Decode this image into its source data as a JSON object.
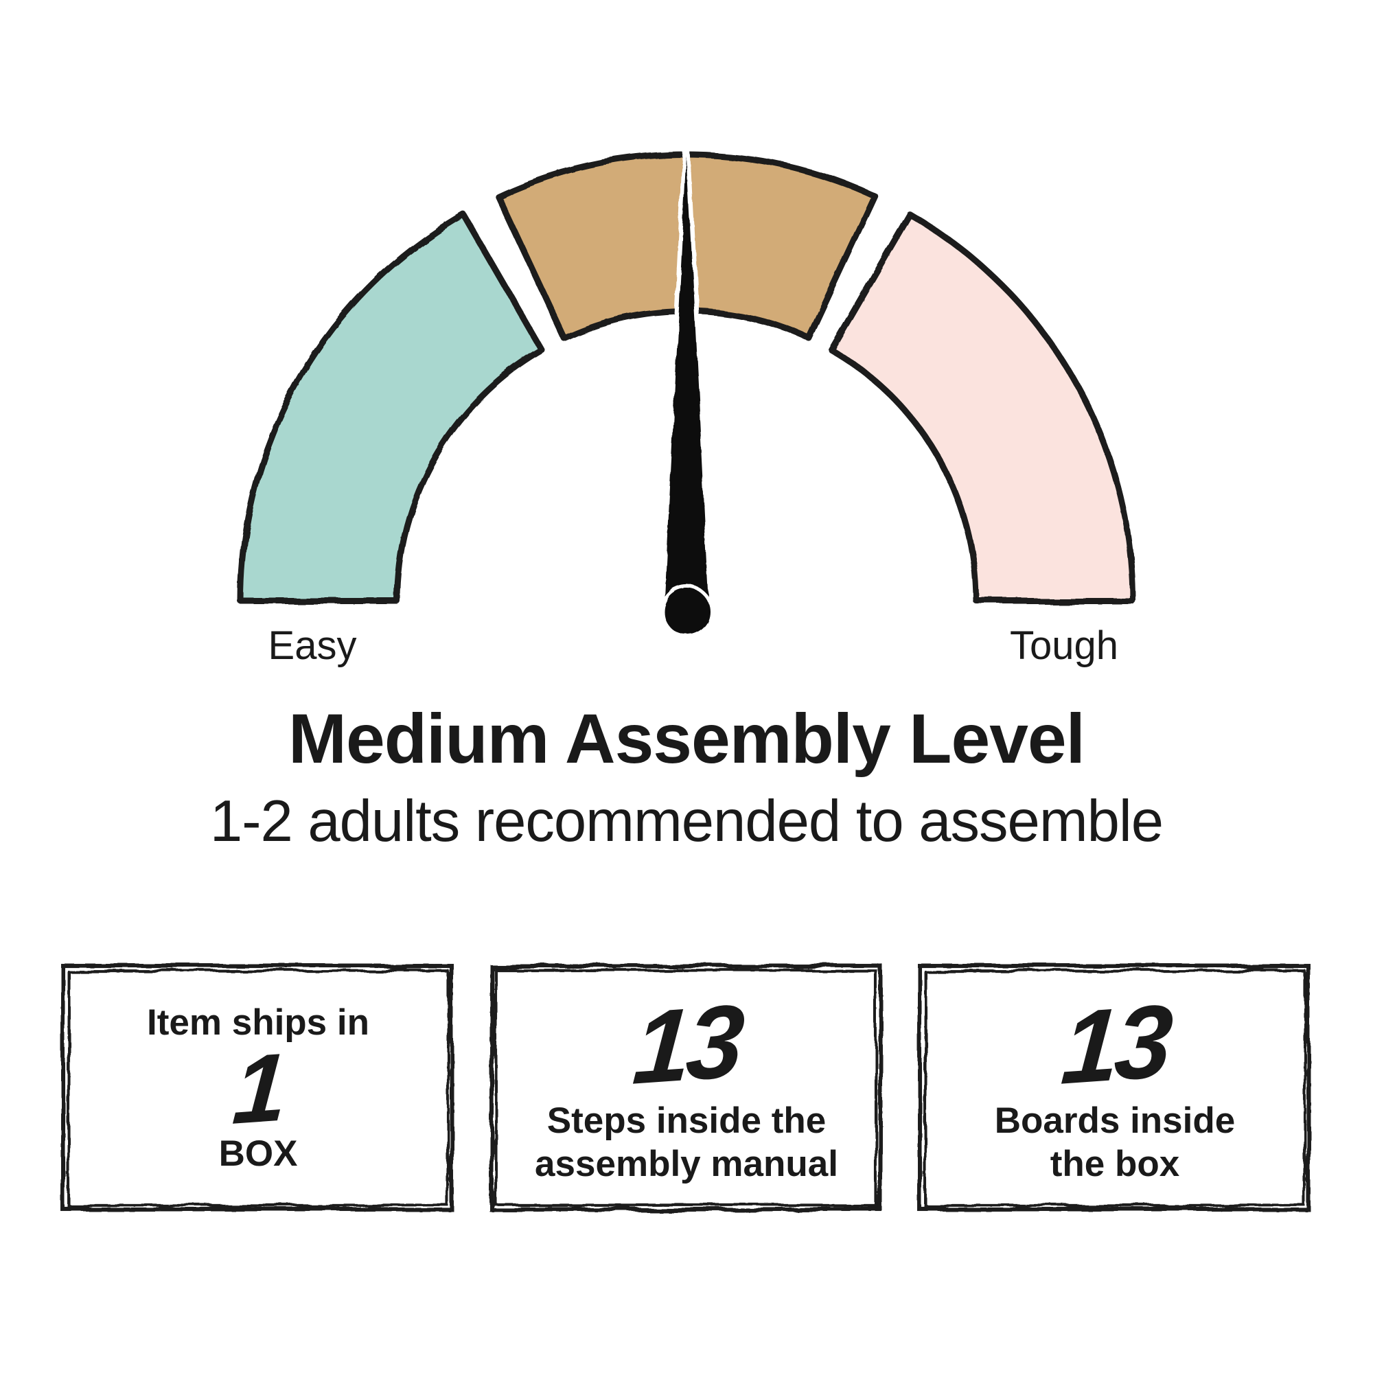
{
  "gauge": {
    "left_label": "Easy",
    "right_label": "Tough",
    "needle_angle_deg": 90,
    "segments": [
      {
        "name": "easy",
        "color": "#a9d7cf",
        "start_deg": 180,
        "end_deg": 120
      },
      {
        "name": "medium",
        "color": "#d2ab77",
        "start_deg": 115,
        "end_deg": 65
      },
      {
        "name": "tough",
        "color": "#fbe3de",
        "start_deg": 60,
        "end_deg": 0
      }
    ]
  },
  "title": "Medium Assembly Level",
  "subtitle": "1-2 adults recommended to assemble",
  "info_boxes": [
    {
      "top_text": "Item ships in",
      "number": "1",
      "bottom_text": "BOX"
    },
    {
      "number": "13",
      "bottom_text": "Steps inside the\nassembly manual"
    },
    {
      "number": "13",
      "bottom_text": "Boards inside\nthe box"
    }
  ],
  "colors": {
    "ink": "#1a1a1a",
    "needle": "#0d0d0d",
    "easy_segment": "#a9d7cf",
    "medium_segment": "#d2ab77",
    "tough_segment": "#fbe3de",
    "background": "#ffffff"
  }
}
